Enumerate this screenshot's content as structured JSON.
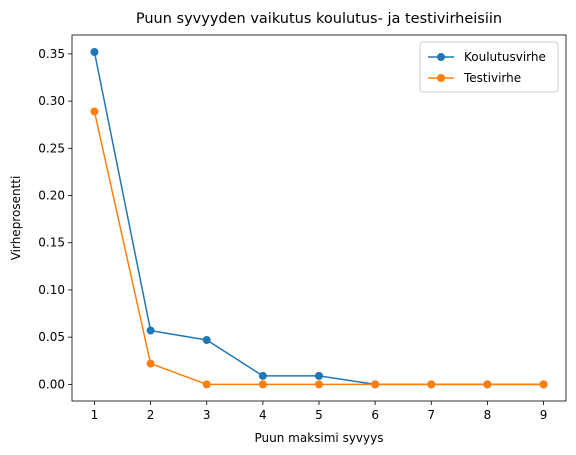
{
  "chart_data": {
    "type": "line",
    "title": "Puun syvyyden vaikutus koulutus- ja testivirheisiin",
    "xlabel": "Puun maksimi syvyys",
    "ylabel": "Virheprosentti",
    "x": [
      1,
      2,
      3,
      4,
      5,
      6,
      7,
      8,
      9
    ],
    "xticks": [
      "1",
      "2",
      "3",
      "4",
      "5",
      "6",
      "7",
      "8",
      "9"
    ],
    "yticks": [
      "0.00",
      "0.05",
      "0.10",
      "0.15",
      "0.20",
      "0.25",
      "0.30",
      "0.35"
    ],
    "xlim": [
      0.6,
      9.4
    ],
    "ylim": [
      -0.0176,
      0.37
    ],
    "grid": false,
    "legend_position": "top-right",
    "series": [
      {
        "name": "Koulutusvirhe",
        "color": "#1f77b4",
        "values": [
          0.352,
          0.057,
          0.047,
          0.009,
          0.009,
          0.0,
          0.0,
          0.0,
          0.0
        ]
      },
      {
        "name": "Testivirhe",
        "color": "#ff7f0e",
        "values": [
          0.289,
          0.022,
          0.0,
          0.0,
          0.0,
          0.0,
          0.0,
          0.0,
          0.0
        ]
      }
    ]
  }
}
